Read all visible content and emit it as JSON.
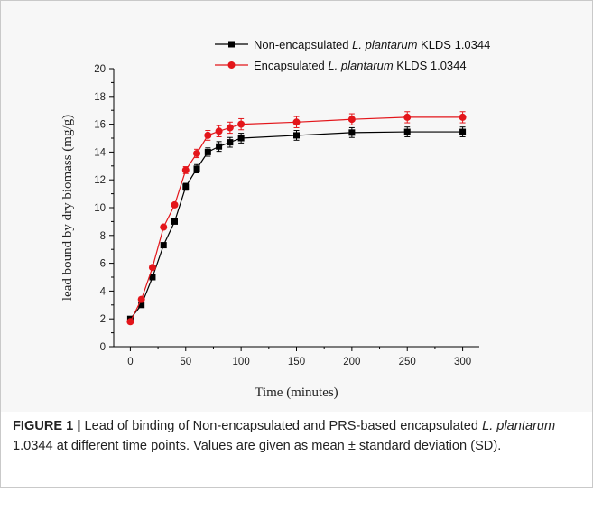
{
  "chart_data": {
    "type": "line",
    "xlabel": "Time (minutes)",
    "ylabel": "lead bound by dry biomass (mg/g)",
    "xlim": [
      -15,
      315
    ],
    "ylim": [
      0,
      20
    ],
    "x_ticks": [
      0,
      50,
      100,
      150,
      200,
      250,
      300
    ],
    "y_ticks": [
      0,
      2,
      4,
      6,
      8,
      10,
      12,
      14,
      16,
      18,
      20
    ],
    "grid": false,
    "legend_position": "top-center",
    "series": [
      {
        "name": "Non-encapsulated L. plantarum KLDS 1.0344",
        "name_parts": {
          "prefix": "Non-encapsulated ",
          "species": "L. plantarum",
          "suffix": " KLDS 1.0344"
        },
        "marker": "square",
        "color": "#000000",
        "x": [
          0,
          10,
          20,
          30,
          40,
          50,
          60,
          70,
          80,
          90,
          100,
          150,
          200,
          250,
          300
        ],
        "y": [
          2.0,
          3.0,
          5.0,
          7.3,
          9.0,
          11.5,
          12.8,
          14.0,
          14.4,
          14.7,
          15.0,
          15.2,
          15.4,
          15.45,
          15.45
        ],
        "error": [
          0.1,
          0.15,
          0.15,
          0.15,
          0.15,
          0.25,
          0.3,
          0.3,
          0.35,
          0.35,
          0.35,
          0.35,
          0.35,
          0.35,
          0.35
        ]
      },
      {
        "name": "Encapsulated L. plantarum KLDS 1.0344",
        "name_parts": {
          "prefix": "Encapsulated ",
          "species": "L. plantarum",
          "suffix": " KLDS 1.0344"
        },
        "marker": "circle",
        "color": "#e3151a",
        "x": [
          0,
          10,
          20,
          30,
          40,
          50,
          60,
          70,
          80,
          90,
          100,
          150,
          200,
          250,
          300
        ],
        "y": [
          1.8,
          3.4,
          5.7,
          8.6,
          10.2,
          12.7,
          13.9,
          15.2,
          15.5,
          15.75,
          16.0,
          16.15,
          16.35,
          16.5,
          16.5
        ],
        "error": [
          0.1,
          0.15,
          0.15,
          0.15,
          0.15,
          0.25,
          0.3,
          0.35,
          0.4,
          0.4,
          0.4,
          0.4,
          0.4,
          0.4,
          0.4
        ]
      }
    ]
  },
  "caption": {
    "label": "FIGURE 1 |",
    "text_before": " Lead of binding of Non-encapsulated and PRS-based encapsulated ",
    "species": "L. plantarum",
    "text_after": " 1.0344 at different time points. Values are given as mean ± standard deviation (SD)."
  }
}
